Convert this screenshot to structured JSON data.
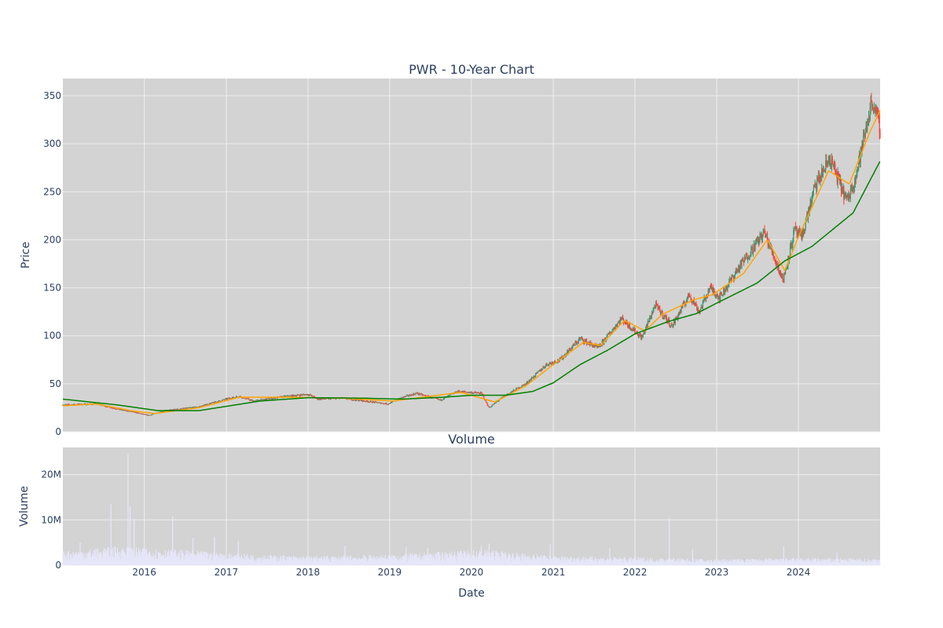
{
  "chart_data": [
    {
      "type": "candlestick",
      "title": "PWR - 10-Year Chart",
      "xlabel": "",
      "ylabel": "Price",
      "ylim": [
        0,
        368
      ],
      "xlim": [
        "2015-01-02",
        "2024-12-31"
      ],
      "yticks": [
        0,
        50,
        100,
        150,
        200,
        250,
        300,
        350
      ],
      "grid": true,
      "legend": "none",
      "colors": {
        "plot_bg": "#d3d3d3",
        "grid": "#eeeeee",
        "increasing": "#3d9970",
        "decreasing": "#ff4136",
        "ma_short": "#ffa500",
        "ma_long": "#008000"
      },
      "price_keypoints": [
        [
          "2015-01-02",
          28
        ],
        [
          "2015-06-01",
          29
        ],
        [
          "2015-09-15",
          23
        ],
        [
          "2015-11-01",
          21
        ],
        [
          "2016-01-20",
          17
        ],
        [
          "2016-04-01",
          22
        ],
        [
          "2016-09-01",
          26
        ],
        [
          "2017-01-01",
          34
        ],
        [
          "2017-03-01",
          37
        ],
        [
          "2017-05-01",
          32
        ],
        [
          "2017-10-01",
          37
        ],
        [
          "2018-01-01",
          39
        ],
        [
          "2018-02-15",
          34
        ],
        [
          "2018-06-01",
          35
        ],
        [
          "2018-12-24",
          29
        ],
        [
          "2019-03-01",
          36
        ],
        [
          "2019-05-01",
          40
        ],
        [
          "2019-08-15",
          33
        ],
        [
          "2019-11-01",
          42
        ],
        [
          "2020-02-15",
          40
        ],
        [
          "2020-03-20",
          25
        ],
        [
          "2020-06-01",
          38
        ],
        [
          "2020-09-01",
          50
        ],
        [
          "2020-12-01",
          70
        ],
        [
          "2021-02-01",
          75
        ],
        [
          "2021-05-01",
          97
        ],
        [
          "2021-07-20",
          87
        ],
        [
          "2021-11-01",
          118
        ],
        [
          "2022-02-01",
          98
        ],
        [
          "2022-04-01",
          132
        ],
        [
          "2022-06-15",
          110
        ],
        [
          "2022-09-01",
          143
        ],
        [
          "2022-10-15",
          125
        ],
        [
          "2022-12-01",
          150
        ],
        [
          "2023-01-15",
          140
        ],
        [
          "2023-04-01",
          168
        ],
        [
          "2023-08-01",
          208
        ],
        [
          "2023-10-25",
          158
        ],
        [
          "2023-12-15",
          210
        ],
        [
          "2024-01-15",
          202
        ],
        [
          "2024-03-15",
          255
        ],
        [
          "2024-05-20",
          285
        ],
        [
          "2024-08-05",
          240
        ],
        [
          "2024-09-15",
          268
        ],
        [
          "2024-11-25",
          346
        ],
        [
          "2024-12-31",
          316
        ]
      ],
      "ma_short_keypoints": [
        [
          "2015-01-02",
          27
        ],
        [
          "2015-06-01",
          29
        ],
        [
          "2015-11-01",
          22
        ],
        [
          "2016-02-15",
          19
        ],
        [
          "2016-09-01",
          25
        ],
        [
          "2017-03-01",
          36
        ],
        [
          "2017-10-01",
          36
        ],
        [
          "2018-06-01",
          35
        ],
        [
          "2019-01-15",
          32
        ],
        [
          "2019-07-01",
          37
        ],
        [
          "2019-11-15",
          41
        ],
        [
          "2020-04-15",
          31
        ],
        [
          "2020-09-01",
          48
        ],
        [
          "2021-01-01",
          70
        ],
        [
          "2021-05-15",
          93
        ],
        [
          "2021-08-01",
          90
        ],
        [
          "2021-11-15",
          116
        ],
        [
          "2022-02-15",
          105
        ],
        [
          "2022-05-01",
          122
        ],
        [
          "2022-09-15",
          137
        ],
        [
          "2022-12-15",
          143
        ],
        [
          "2023-05-01",
          165
        ],
        [
          "2023-08-15",
          200
        ],
        [
          "2023-11-01",
          168
        ],
        [
          "2024-01-01",
          203
        ],
        [
          "2024-05-15",
          272
        ],
        [
          "2024-08-15",
          258
        ],
        [
          "2024-11-15",
          312
        ],
        [
          "2024-12-31",
          335
        ]
      ],
      "ma_long_keypoints": [
        [
          "2015-01-02",
          34
        ],
        [
          "2015-09-01",
          28
        ],
        [
          "2016-03-01",
          22
        ],
        [
          "2016-09-01",
          22
        ],
        [
          "2017-06-01",
          32
        ],
        [
          "2018-01-01",
          35.5
        ],
        [
          "2018-09-01",
          35
        ],
        [
          "2019-03-01",
          34
        ],
        [
          "2019-09-01",
          36
        ],
        [
          "2020-01-01",
          38
        ],
        [
          "2020-06-01",
          38
        ],
        [
          "2020-10-01",
          42
        ],
        [
          "2021-01-01",
          51
        ],
        [
          "2021-05-01",
          70
        ],
        [
          "2021-09-01",
          85
        ],
        [
          "2022-01-01",
          102
        ],
        [
          "2022-06-01",
          115
        ],
        [
          "2022-10-01",
          123
        ],
        [
          "2023-01-01",
          134
        ],
        [
          "2023-07-01",
          155
        ],
        [
          "2023-11-01",
          178
        ],
        [
          "2024-03-01",
          193
        ],
        [
          "2024-09-01",
          228
        ],
        [
          "2024-12-31",
          282
        ]
      ]
    },
    {
      "type": "bar",
      "title": "Volume",
      "xlabel": "Date",
      "ylabel": "Volume",
      "ylim": [
        0,
        26000000
      ],
      "yticks": [
        0,
        10000000,
        20000000
      ],
      "ytick_labels": [
        "0",
        "10M",
        "20M"
      ],
      "xtick_labels": [
        "2016",
        "2017",
        "2018",
        "2019",
        "2020",
        "2021",
        "2022",
        "2023",
        "2024"
      ],
      "grid": true,
      "colors": {
        "plot_bg": "#d3d3d3",
        "bar": "#e6e6fa"
      },
      "volume_level_keypoints": [
        [
          "2015-01-02",
          2500000
        ],
        [
          "2015-09-01",
          3400000
        ],
        [
          "2016-06-01",
          2800000
        ],
        [
          "2017-01-01",
          2200000
        ],
        [
          "2018-01-01",
          1600000
        ],
        [
          "2019-01-01",
          1900000
        ],
        [
          "2020-03-01",
          2800000
        ],
        [
          "2021-01-01",
          1700000
        ],
        [
          "2022-01-01",
          1400000
        ],
        [
          "2023-01-01",
          1100000
        ],
        [
          "2024-01-01",
          1300000
        ],
        [
          "2024-12-31",
          1200000
        ]
      ],
      "volume_spikes": [
        [
          "2015-03-20",
          5000000
        ],
        [
          "2015-08-05",
          13500000
        ],
        [
          "2015-10-20",
          24500000
        ],
        [
          "2015-10-29",
          13000000
        ],
        [
          "2015-11-16",
          10200000
        ],
        [
          "2016-05-06",
          10800000
        ],
        [
          "2016-08-05",
          6000000
        ],
        [
          "2016-11-09",
          6200000
        ],
        [
          "2017-02-24",
          5200000
        ],
        [
          "2018-06-15",
          4300000
        ],
        [
          "2019-03-15",
          4000000
        ],
        [
          "2019-06-20",
          3800000
        ],
        [
          "2020-02-14",
          4200000
        ],
        [
          "2020-03-20",
          4800000
        ],
        [
          "2020-12-18",
          4700000
        ],
        [
          "2021-09-10",
          3800000
        ],
        [
          "2022-06-03",
          10500000
        ],
        [
          "2022-09-15",
          3500000
        ],
        [
          "2023-10-27",
          4200000
        ],
        [
          "2024-06-21",
          2800000
        ]
      ]
    }
  ]
}
